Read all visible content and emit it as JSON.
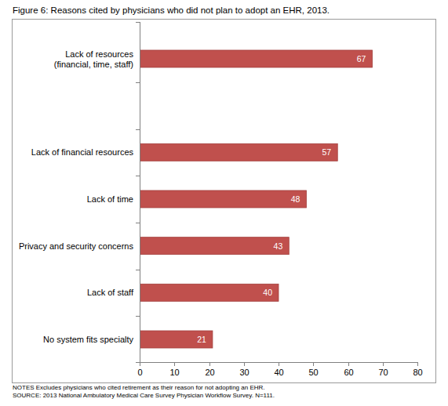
{
  "chart_data": {
    "type": "bar",
    "orientation": "horizontal",
    "title": "Figure 6: Reasons cited by physicians who did not plan to adopt an EHR, 2013.",
    "categories": [
      "Lack of resources\n(financial, time, staff)",
      null,
      "Lack of financial resources",
      "Lack of time",
      "Privacy and security concerns",
      "Lack of staff",
      "No system fits specialty"
    ],
    "values": [
      67,
      null,
      57,
      48,
      43,
      40,
      21
    ],
    "color": "#c0504d",
    "xlim": [
      0,
      80
    ],
    "xticks": [
      0,
      10,
      20,
      30,
      40,
      50,
      60,
      70,
      80
    ],
    "grid": false,
    "data_labels": true,
    "annotations": [
      "NOTES Excludes physicians who cited retirement as their reason for not adopting an EHR.",
      "SOURCE: 2013 National Ambulatory Medical Care Survey Physician Workflow Survey. N=111."
    ]
  }
}
